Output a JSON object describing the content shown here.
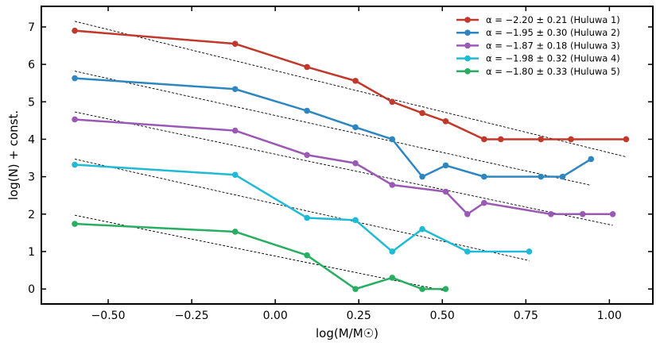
{
  "chart_data": {
    "type": "line",
    "xlabel": "log(M/M☉)",
    "ylabel": "log(N) + const.",
    "xlim": [
      -0.7,
      1.13
    ],
    "ylim": [
      -0.4,
      7.55
    ],
    "xticks": [
      -0.5,
      -0.25,
      0.0,
      0.25,
      0.5,
      0.75,
      1.0
    ],
    "xtick_labels": [
      "−0.50",
      "−0.25",
      "0.00",
      "0.25",
      "0.50",
      "0.75",
      "1.00"
    ],
    "yticks": [
      0,
      1,
      2,
      3,
      4,
      5,
      6,
      7
    ],
    "ytick_labels": [
      "0",
      "1",
      "2",
      "3",
      "4",
      "5",
      "6",
      "7"
    ],
    "legend_position": "top-right",
    "grid": false,
    "series": [
      {
        "name": "α = −2.20 ± 0.21 (Huluwa 1)",
        "color": "#c0392b",
        "x": [
          -0.6,
          -0.12,
          0.095,
          0.24,
          0.35,
          0.44,
          0.51,
          0.625,
          0.675,
          0.795,
          0.885,
          1.05
        ],
        "y": [
          6.9,
          6.55,
          5.93,
          5.56,
          5.0,
          4.7,
          4.48,
          4.0,
          4.0,
          4.0,
          4.0,
          4.0
        ],
        "fit": {
          "x": [
            -0.6,
            1.05
          ],
          "y": [
            7.15,
            3.53
          ]
        }
      },
      {
        "name": "α = −1.95 ± 0.30 (Huluwa 2)",
        "color": "#2e86c1",
        "x": [
          -0.6,
          -0.12,
          0.095,
          0.24,
          0.35,
          0.44,
          0.51,
          0.625,
          0.795,
          0.86,
          0.945
        ],
        "y": [
          5.63,
          5.34,
          4.76,
          4.32,
          4.0,
          3.0,
          3.3,
          3.0,
          3.0,
          3.0,
          3.47
        ],
        "fit": {
          "x": [
            -0.6,
            0.945
          ],
          "y": [
            5.82,
            2.77
          ]
        }
      },
      {
        "name": "α = −1.87 ± 0.18 (Huluwa 3)",
        "color": "#9b59b6",
        "x": [
          -0.6,
          -0.12,
          0.095,
          0.24,
          0.35,
          0.51,
          0.575,
          0.625,
          0.825,
          0.92,
          1.01
        ],
        "y": [
          4.53,
          4.23,
          3.58,
          3.36,
          2.78,
          2.6,
          2.0,
          2.3,
          2.0,
          2.0,
          2.0
        ],
        "fit": {
          "x": [
            -0.6,
            1.01
          ],
          "y": [
            4.73,
            1.7
          ]
        }
      },
      {
        "name": "α = −1.98 ± 0.32 (Huluwa 4)",
        "color": "#1fbad6",
        "x": [
          -0.6,
          -0.12,
          0.095,
          0.24,
          0.35,
          0.44,
          0.575,
          0.76
        ],
        "y": [
          3.32,
          3.05,
          1.9,
          1.84,
          1.0,
          1.6,
          1.0,
          1.0
        ],
        "fit": {
          "x": [
            -0.6,
            0.76
          ],
          "y": [
            3.47,
            0.76
          ]
        }
      },
      {
        "name": "α = −1.80 ± 0.33 (Huluwa 5)",
        "color": "#27ae60",
        "x": [
          -0.6,
          -0.12,
          0.095,
          0.24,
          0.35,
          0.44,
          0.51
        ],
        "y": [
          1.74,
          1.53,
          0.9,
          0.0,
          0.3,
          0.0,
          0.0
        ],
        "fit": {
          "x": [
            -0.6,
            0.51
          ],
          "y": [
            1.97,
            -0.05
          ]
        }
      }
    ]
  }
}
